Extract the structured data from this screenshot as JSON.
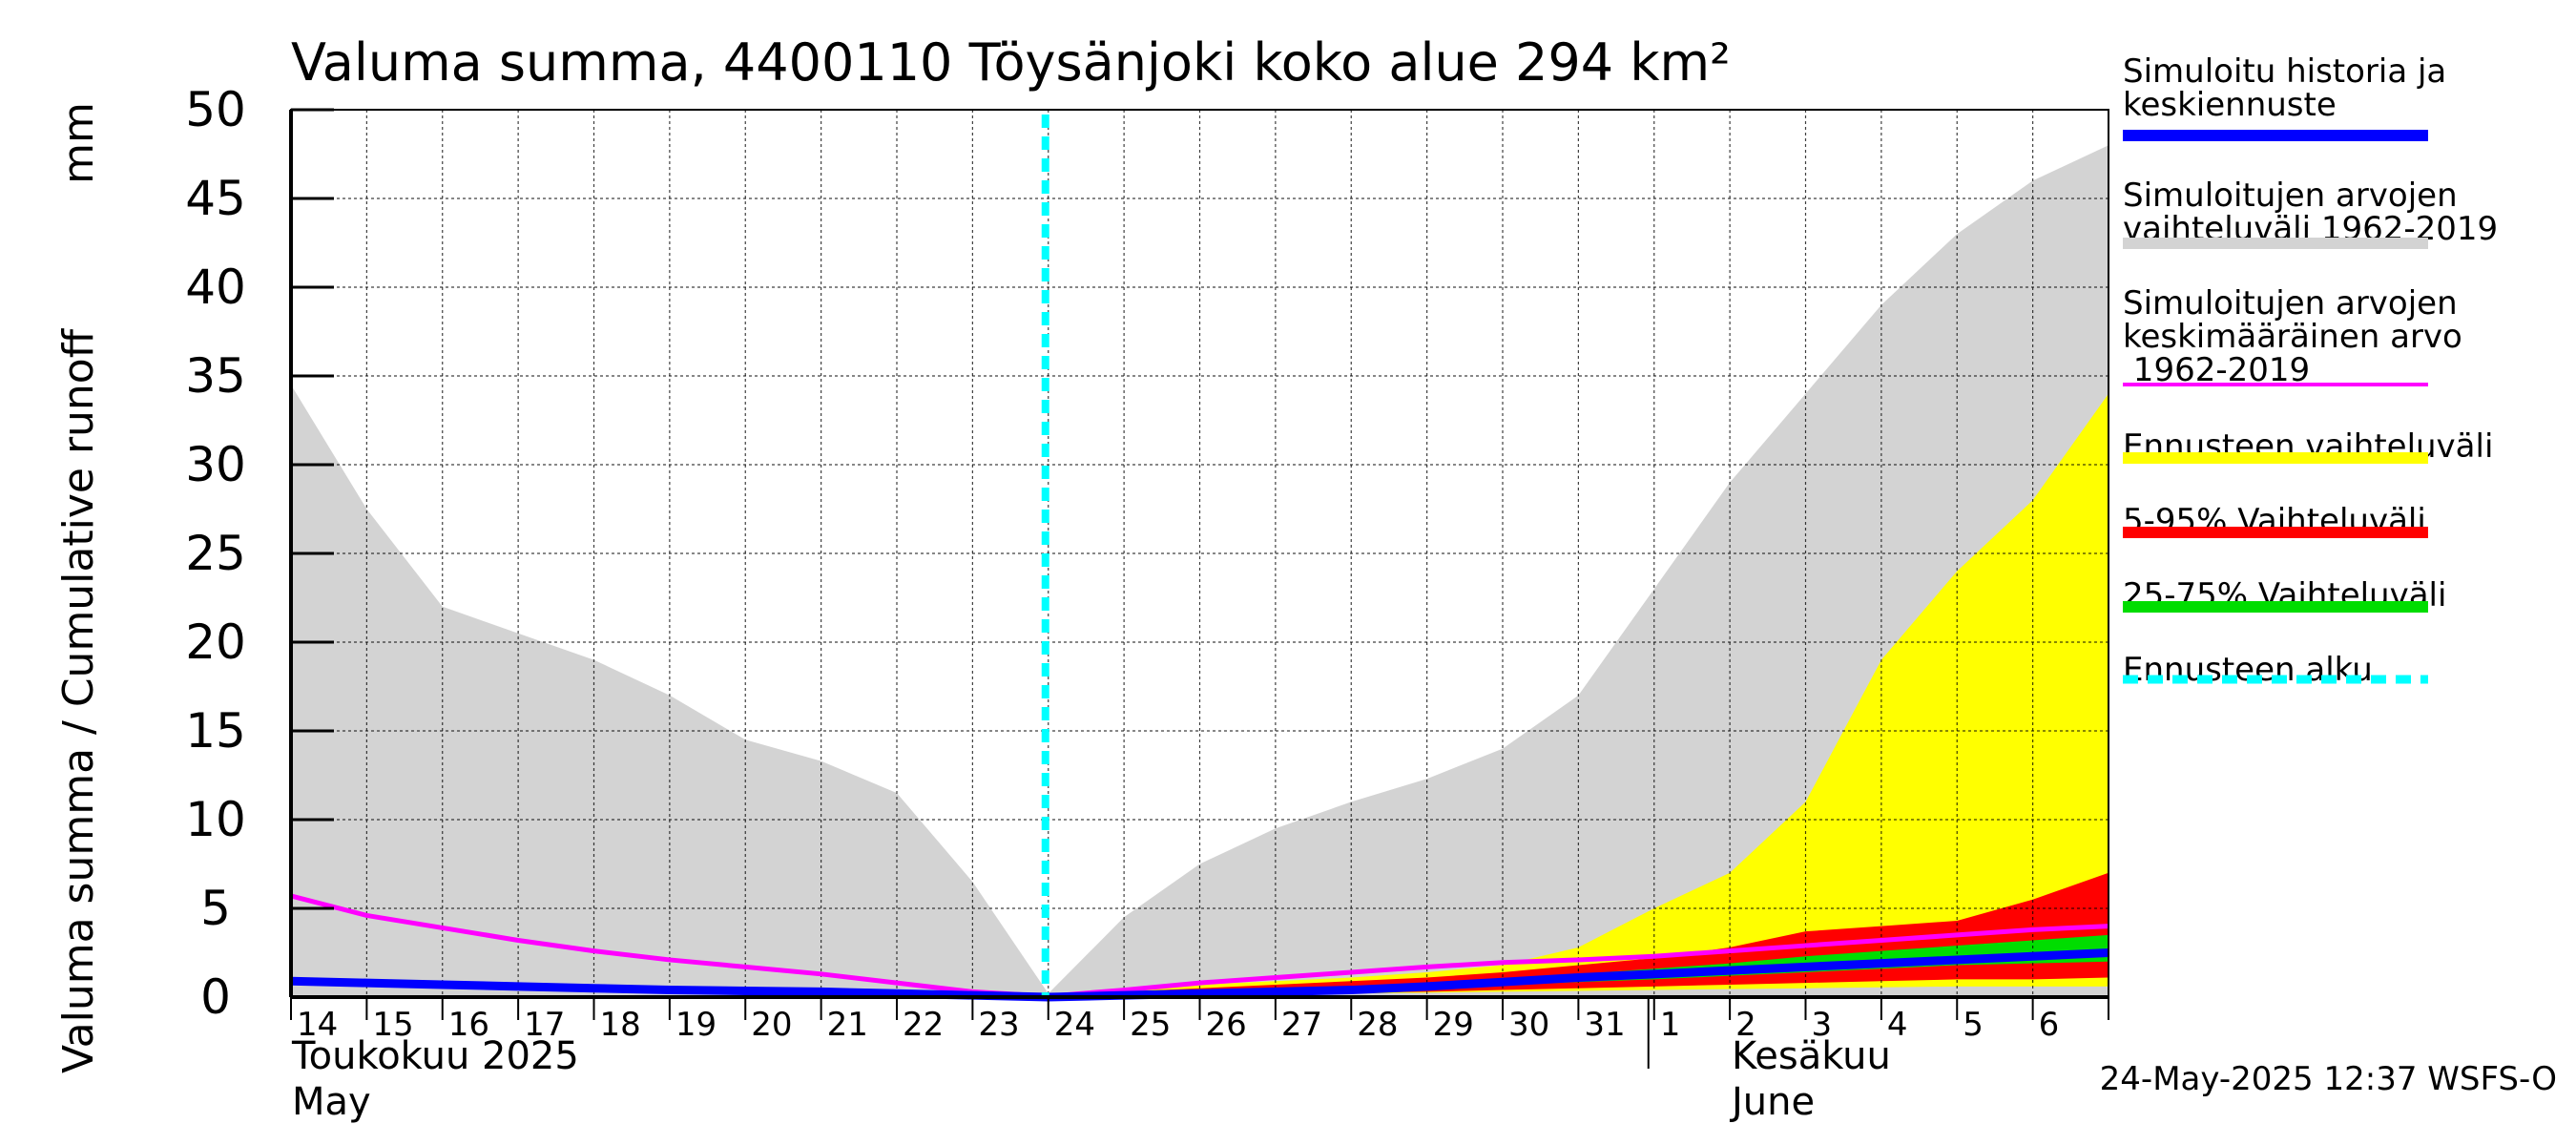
{
  "chart_data": {
    "type": "area",
    "title": "Valuma summa, 4400110 Töysänjoki koko alue 294 km²",
    "ylabel": "Valuma summa / Cumulative runoff",
    "yunit": "mm",
    "ylim": [
      0,
      50
    ],
    "yticks": [
      0,
      5,
      10,
      15,
      20,
      25,
      30,
      35,
      40,
      45,
      50
    ],
    "x_day_labels": [
      "14",
      "15",
      "16",
      "17",
      "18",
      "19",
      "20",
      "21",
      "22",
      "23",
      "24",
      "25",
      "26",
      "27",
      "28",
      "29",
      "30",
      "31",
      "1",
      "2",
      "3",
      "4",
      "5",
      "6"
    ],
    "month_labels": [
      {
        "fi": "Toukokuu  2025",
        "en": "May"
      },
      {
        "fi": "Kesäkuu",
        "en": "June"
      }
    ],
    "forecast_start": "2025-05-24",
    "grid": true,
    "legend_position": "right",
    "timestamp": "24-May-2025 12:37 WSFS-O",
    "series": {
      "hist_range": {
        "x": [
          14,
          15,
          16,
          17,
          18,
          19,
          20,
          21,
          22,
          23,
          24,
          25,
          26,
          27,
          28,
          29,
          30,
          31,
          32,
          33,
          34,
          35,
          36,
          37,
          38
        ],
        "upper": [
          34.5,
          27.5,
          22,
          20.5,
          19,
          17,
          14.5,
          13.3,
          11.5,
          6.5,
          0.2,
          4.5,
          7.5,
          9.5,
          11,
          12.3,
          14,
          17,
          23,
          29,
          34,
          39,
          43,
          46,
          48
        ],
        "lower": [
          0,
          0,
          0,
          0,
          0,
          0,
          0,
          0,
          0,
          0,
          0,
          0,
          0,
          0,
          0,
          0,
          0,
          0,
          0,
          0,
          0,
          0,
          0,
          0,
          0
        ]
      },
      "mean": {
        "x": [
          14,
          15,
          16,
          17,
          18,
          19,
          20,
          21,
          22,
          23,
          24,
          25,
          26,
          27,
          28,
          29,
          30,
          31,
          32,
          33,
          34,
          35,
          36,
          37,
          38
        ],
        "values": [
          5.7,
          4.6,
          3.9,
          3.2,
          2.6,
          2.1,
          1.7,
          1.3,
          0.8,
          0.3,
          0.05,
          0.4,
          0.8,
          1.1,
          1.4,
          1.7,
          1.95,
          2.1,
          2.3,
          2.6,
          2.9,
          3.2,
          3.5,
          3.8,
          4.0
        ]
      },
      "simulated": {
        "x": [
          14,
          15,
          16,
          17,
          18,
          19,
          20,
          21,
          22,
          23,
          24,
          25,
          26,
          27,
          28,
          29,
          30,
          31,
          32,
          33,
          34,
          35,
          36,
          37,
          38
        ],
        "values": [
          0.9,
          0.8,
          0.7,
          0.6,
          0.5,
          0.4,
          0.35,
          0.3,
          0.2,
          0.1,
          0.0,
          0.1,
          0.2,
          0.3,
          0.4,
          0.6,
          0.85,
          1.1,
          1.3,
          1.5,
          1.7,
          1.9,
          2.1,
          2.3,
          2.5
        ]
      },
      "forecast_range": {
        "x": [
          24,
          25,
          26,
          27,
          28,
          29,
          30,
          31,
          32,
          33,
          34,
          35,
          36,
          37,
          38
        ],
        "upper": [
          0.0,
          0.4,
          0.7,
          0.9,
          1.1,
          1.4,
          1.8,
          2.8,
          5.0,
          7.0,
          11,
          19,
          24,
          28,
          34
        ],
        "lower": [
          0.0,
          0.05,
          0.1,
          0.15,
          0.2,
          0.25,
          0.3,
          0.35,
          0.4,
          0.45,
          0.5,
          0.55,
          0.6,
          0.6,
          0.6
        ]
      },
      "p5_95": {
        "x": [
          24,
          25,
          26,
          27,
          28,
          29,
          30,
          31,
          32,
          33,
          34,
          35,
          36,
          37,
          38
        ],
        "upper": [
          0.0,
          0.3,
          0.5,
          0.7,
          0.9,
          1.1,
          1.4,
          1.8,
          2.2,
          2.8,
          3.7,
          4.0,
          4.3,
          5.5,
          7.0
        ],
        "lower": [
          0.0,
          0.1,
          0.15,
          0.2,
          0.25,
          0.3,
          0.4,
          0.5,
          0.6,
          0.7,
          0.8,
          0.9,
          1.0,
          1.0,
          1.1
        ]
      },
      "p25_75": {
        "x": [
          24,
          25,
          26,
          27,
          28,
          29,
          30,
          31,
          32,
          33,
          34,
          35,
          36,
          37,
          38
        ],
        "upper": [
          0.0,
          0.2,
          0.35,
          0.5,
          0.6,
          0.8,
          1.0,
          1.3,
          1.6,
          1.9,
          2.3,
          2.6,
          2.9,
          3.2,
          3.5
        ],
        "lower": [
          0.0,
          0.1,
          0.2,
          0.3,
          0.4,
          0.5,
          0.65,
          0.85,
          1.0,
          1.2,
          1.4,
          1.6,
          1.8,
          1.9,
          2.0
        ]
      }
    },
    "legend": [
      {
        "label": "Simuloitu historia ja\nkeskiennuste",
        "color": "#0000ff",
        "style": "line"
      },
      {
        "label": "Simuloitujen arvojen\nvaihteluväli 1962-2019",
        "color": "#d3d3d3",
        "style": "line"
      },
      {
        "label": "Simuloitujen arvojen\nkeskimääräinen arvo\n   1962-2019",
        "color": "#ff00ff",
        "style": "thin"
      },
      {
        "label": "Ennusteen vaihteluväli",
        "color": "#ffff00",
        "style": "line"
      },
      {
        "label": "5-95% Vaihteluväli",
        "color": "#ff0000",
        "style": "line"
      },
      {
        "label": "25-75% Vaihteluväli",
        "color": "#00dd00",
        "style": "line"
      },
      {
        "label": "Ennusteen alku",
        "color": "#00ffff",
        "style": "dashed"
      }
    ],
    "colors": {
      "hist_range": "#d3d3d3",
      "forecast_range": "#ffff00",
      "p5_95": "#ff0000",
      "p25_75": "#00dd00",
      "mean": "#ff00ff",
      "simulated": "#0000ff",
      "forecast_start": "#00ffff"
    }
  }
}
